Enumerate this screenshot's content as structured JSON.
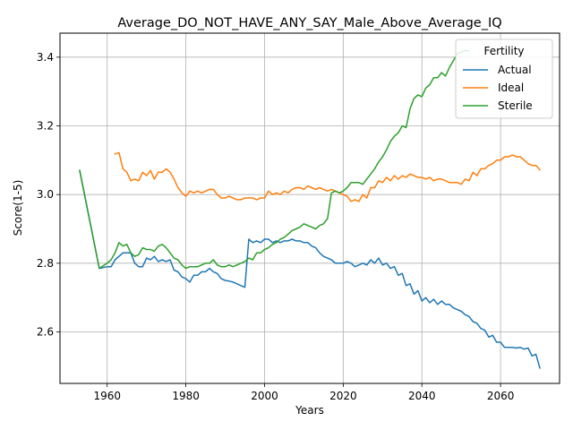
{
  "chart_data": {
    "type": "line",
    "title": "Average_DO_NOT_HAVE_ANY_SAY_Male_Above_Average_IQ",
    "xlabel": "Years",
    "ylabel": "Score(1-5)",
    "xlim": [
      1948,
      2075
    ],
    "ylim": [
      2.45,
      3.47
    ],
    "xticks": [
      1960,
      1980,
      2000,
      2020,
      2040,
      2060
    ],
    "yticks": [
      2.6,
      2.8,
      3.0,
      3.2,
      3.4
    ],
    "grid": true,
    "legend": {
      "title": "Fertility",
      "position": "top-right"
    },
    "series": [
      {
        "name": "Actual",
        "color": "#1f77b4",
        "points": [
          [
            1953,
            3.07
          ],
          [
            1958,
            2.785
          ],
          [
            1960,
            2.79
          ],
          [
            1961,
            2.79
          ],
          [
            1962,
            2.81
          ],
          [
            1964,
            2.83
          ],
          [
            1966,
            2.83
          ],
          [
            1967,
            2.8
          ],
          [
            1968,
            2.79
          ],
          [
            1969,
            2.79
          ],
          [
            1970,
            2.815
          ],
          [
            1971,
            2.81
          ],
          [
            1972,
            2.82
          ],
          [
            1973,
            2.805
          ],
          [
            1974,
            2.81
          ],
          [
            1975,
            2.805
          ],
          [
            1976,
            2.81
          ],
          [
            1977,
            2.78
          ],
          [
            1978,
            2.775
          ],
          [
            1979,
            2.76
          ],
          [
            1980,
            2.755
          ],
          [
            1981,
            2.745
          ],
          [
            1982,
            2.765
          ],
          [
            1983,
            2.765
          ],
          [
            1984,
            2.775
          ],
          [
            1985,
            2.775
          ],
          [
            1986,
            2.785
          ],
          [
            1987,
            2.775
          ],
          [
            1988,
            2.77
          ],
          [
            1989,
            2.755
          ],
          [
            1990,
            2.75
          ],
          [
            1991,
            2.748
          ],
          [
            1992,
            2.745
          ],
          [
            1993,
            2.74
          ],
          [
            1994,
            2.735
          ],
          [
            1995,
            2.73
          ],
          [
            1996,
            2.87
          ],
          [
            1997,
            2.86
          ],
          [
            1998,
            2.865
          ],
          [
            1999,
            2.86
          ],
          [
            2000,
            2.87
          ],
          [
            2001,
            2.87
          ],
          [
            2002,
            2.86
          ],
          [
            2003,
            2.865
          ],
          [
            2004,
            2.86
          ],
          [
            2005,
            2.865
          ],
          [
            2006,
            2.865
          ],
          [
            2007,
            2.87
          ],
          [
            2008,
            2.865
          ],
          [
            2009,
            2.865
          ],
          [
            2010,
            2.86
          ],
          [
            2011,
            2.86
          ],
          [
            2012,
            2.85
          ],
          [
            2013,
            2.845
          ],
          [
            2014,
            2.83
          ],
          [
            2015,
            2.82
          ],
          [
            2016,
            2.815
          ],
          [
            2017,
            2.81
          ],
          [
            2018,
            2.8
          ],
          [
            2019,
            2.8
          ],
          [
            2020,
            2.8
          ],
          [
            2021,
            2.805
          ],
          [
            2022,
            2.8
          ],
          [
            2023,
            2.79
          ],
          [
            2024,
            2.795
          ],
          [
            2025,
            2.8
          ],
          [
            2026,
            2.795
          ],
          [
            2027,
            2.81
          ],
          [
            2028,
            2.8
          ],
          [
            2029,
            2.815
          ],
          [
            2030,
            2.795
          ],
          [
            2031,
            2.8
          ],
          [
            2032,
            2.785
          ],
          [
            2033,
            2.79
          ],
          [
            2034,
            2.765
          ],
          [
            2035,
            2.77
          ],
          [
            2036,
            2.735
          ],
          [
            2037,
            2.74
          ],
          [
            2038,
            2.71
          ],
          [
            2039,
            2.72
          ],
          [
            2040,
            2.69
          ],
          [
            2041,
            2.7
          ],
          [
            2042,
            2.685
          ],
          [
            2043,
            2.695
          ],
          [
            2044,
            2.68
          ],
          [
            2045,
            2.69
          ],
          [
            2046,
            2.68
          ],
          [
            2047,
            2.68
          ],
          [
            2048,
            2.67
          ],
          [
            2049,
            2.665
          ],
          [
            2050,
            2.66
          ],
          [
            2051,
            2.65
          ],
          [
            2052,
            2.645
          ],
          [
            2053,
            2.63
          ],
          [
            2054,
            2.625
          ],
          [
            2055,
            2.61
          ],
          [
            2056,
            2.605
          ],
          [
            2057,
            2.585
          ],
          [
            2058,
            2.59
          ],
          [
            2059,
            2.57
          ],
          [
            2060,
            2.57
          ],
          [
            2061,
            2.555
          ],
          [
            2062,
            2.555
          ],
          [
            2063,
            2.555
          ],
          [
            2064,
            2.553
          ],
          [
            2065,
            2.555
          ],
          [
            2066,
            2.55
          ],
          [
            2067,
            2.553
          ],
          [
            2068,
            2.53
          ],
          [
            2069,
            2.535
          ],
          [
            2070,
            2.495
          ]
        ]
      },
      {
        "name": "Ideal",
        "color": "#ff7f0e",
        "points": [
          [
            1962,
            3.118
          ],
          [
            1963,
            3.122
          ],
          [
            1964,
            3.075
          ],
          [
            1965,
            3.065
          ],
          [
            1966,
            3.04
          ],
          [
            1967,
            3.045
          ],
          [
            1968,
            3.04
          ],
          [
            1969,
            3.065
          ],
          [
            1970,
            3.055
          ],
          [
            1971,
            3.07
          ],
          [
            1972,
            3.045
          ],
          [
            1973,
            3.065
          ],
          [
            1974,
            3.065
          ],
          [
            1975,
            3.075
          ],
          [
            1976,
            3.065
          ],
          [
            1977,
            3.045
          ],
          [
            1978,
            3.02
          ],
          [
            1979,
            3.005
          ],
          [
            1980,
            2.995
          ],
          [
            1981,
            3.01
          ],
          [
            1982,
            3.005
          ],
          [
            1983,
            3.01
          ],
          [
            1984,
            3.005
          ],
          [
            1985,
            3.01
          ],
          [
            1986,
            3.015
          ],
          [
            1987,
            3.015
          ],
          [
            1988,
            3.0
          ],
          [
            1989,
            2.99
          ],
          [
            1990,
            2.99
          ],
          [
            1991,
            2.995
          ],
          [
            1992,
            2.99
          ],
          [
            1993,
            2.985
          ],
          [
            1994,
            2.985
          ],
          [
            1995,
            2.99
          ],
          [
            1996,
            2.99
          ],
          [
            1997,
            2.99
          ],
          [
            1998,
            2.985
          ],
          [
            1999,
            2.99
          ],
          [
            2000,
            2.99
          ],
          [
            2001,
            3.01
          ],
          [
            2002,
            3.0
          ],
          [
            2003,
            3.005
          ],
          [
            2004,
            3.0
          ],
          [
            2005,
            3.01
          ],
          [
            2006,
            3.005
          ],
          [
            2007,
            3.015
          ],
          [
            2008,
            3.02
          ],
          [
            2009,
            3.02
          ],
          [
            2010,
            3.015
          ],
          [
            2011,
            3.025
          ],
          [
            2012,
            3.02
          ],
          [
            2013,
            3.015
          ],
          [
            2014,
            3.02
          ],
          [
            2015,
            3.015
          ],
          [
            2016,
            3.01
          ],
          [
            2017,
            3.015
          ],
          [
            2018,
            3.01
          ],
          [
            2019,
            3.005
          ],
          [
            2020,
            3.0
          ],
          [
            2021,
            2.995
          ],
          [
            2022,
            2.98
          ],
          [
            2023,
            2.985
          ],
          [
            2024,
            2.98
          ],
          [
            2025,
            3.0
          ],
          [
            2026,
            2.99
          ],
          [
            2027,
            3.02
          ],
          [
            2028,
            3.02
          ],
          [
            2029,
            3.04
          ],
          [
            2030,
            3.035
          ],
          [
            2031,
            3.05
          ],
          [
            2032,
            3.04
          ],
          [
            2033,
            3.055
          ],
          [
            2034,
            3.045
          ],
          [
            2035,
            3.055
          ],
          [
            2036,
            3.05
          ],
          [
            2037,
            3.06
          ],
          [
            2038,
            3.055
          ],
          [
            2039,
            3.05
          ],
          [
            2040,
            3.05
          ],
          [
            2041,
            3.045
          ],
          [
            2042,
            3.05
          ],
          [
            2043,
            3.04
          ],
          [
            2044,
            3.045
          ],
          [
            2045,
            3.045
          ],
          [
            2046,
            3.04
          ],
          [
            2047,
            3.035
          ],
          [
            2048,
            3.035
          ],
          [
            2049,
            3.035
          ],
          [
            2050,
            3.03
          ],
          [
            2051,
            3.045
          ],
          [
            2052,
            3.04
          ],
          [
            2053,
            3.065
          ],
          [
            2054,
            3.055
          ],
          [
            2055,
            3.075
          ],
          [
            2056,
            3.075
          ],
          [
            2057,
            3.085
          ],
          [
            2058,
            3.09
          ],
          [
            2059,
            3.1
          ],
          [
            2060,
            3.1
          ],
          [
            2061,
            3.11
          ],
          [
            2062,
            3.11
          ],
          [
            2063,
            3.115
          ],
          [
            2064,
            3.11
          ],
          [
            2065,
            3.11
          ],
          [
            2066,
            3.1
          ],
          [
            2067,
            3.09
          ],
          [
            2068,
            3.085
          ],
          [
            2069,
            3.085
          ],
          [
            2070,
            3.072
          ]
        ]
      },
      {
        "name": "Sterile",
        "color": "#2ca02c",
        "points": [
          [
            1953,
            3.07
          ],
          [
            1958,
            2.785
          ],
          [
            1960,
            2.8
          ],
          [
            1961,
            2.81
          ],
          [
            1962,
            2.83
          ],
          [
            1963,
            2.86
          ],
          [
            1964,
            2.85
          ],
          [
            1965,
            2.855
          ],
          [
            1966,
            2.83
          ],
          [
            1967,
            2.82
          ],
          [
            1968,
            2.825
          ],
          [
            1969,
            2.845
          ],
          [
            1970,
            2.84
          ],
          [
            1971,
            2.84
          ],
          [
            1972,
            2.835
          ],
          [
            1973,
            2.85
          ],
          [
            1974,
            2.855
          ],
          [
            1975,
            2.845
          ],
          [
            1976,
            2.83
          ],
          [
            1977,
            2.815
          ],
          [
            1978,
            2.81
          ],
          [
            1979,
            2.795
          ],
          [
            1980,
            2.785
          ],
          [
            1981,
            2.79
          ],
          [
            1982,
            2.79
          ],
          [
            1983,
            2.79
          ],
          [
            1984,
            2.795
          ],
          [
            1985,
            2.8
          ],
          [
            1986,
            2.8
          ],
          [
            1987,
            2.81
          ],
          [
            1988,
            2.795
          ],
          [
            1989,
            2.79
          ],
          [
            1990,
            2.79
          ],
          [
            1991,
            2.795
          ],
          [
            1992,
            2.79
          ],
          [
            1993,
            2.795
          ],
          [
            1994,
            2.8
          ],
          [
            1995,
            2.805
          ],
          [
            1996,
            2.815
          ],
          [
            1997,
            2.81
          ],
          [
            1998,
            2.83
          ],
          [
            1999,
            2.83
          ],
          [
            2000,
            2.84
          ],
          [
            2001,
            2.845
          ],
          [
            2002,
            2.855
          ],
          [
            2003,
            2.86
          ],
          [
            2004,
            2.87
          ],
          [
            2005,
            2.875
          ],
          [
            2006,
            2.885
          ],
          [
            2007,
            2.895
          ],
          [
            2008,
            2.9
          ],
          [
            2009,
            2.905
          ],
          [
            2010,
            2.915
          ],
          [
            2011,
            2.91
          ],
          [
            2012,
            2.905
          ],
          [
            2013,
            2.9
          ],
          [
            2014,
            2.91
          ],
          [
            2015,
            2.915
          ],
          [
            2016,
            2.93
          ],
          [
            2017,
            3.005
          ],
          [
            2018,
            3.01
          ],
          [
            2019,
            3.005
          ],
          [
            2020,
            3.01
          ],
          [
            2021,
            3.02
          ],
          [
            2022,
            3.035
          ],
          [
            2023,
            3.035
          ],
          [
            2024,
            3.035
          ],
          [
            2025,
            3.03
          ],
          [
            2026,
            3.045
          ],
          [
            2027,
            3.06
          ],
          [
            2028,
            3.075
          ],
          [
            2029,
            3.095
          ],
          [
            2030,
            3.11
          ],
          [
            2031,
            3.13
          ],
          [
            2032,
            3.155
          ],
          [
            2033,
            3.17
          ],
          [
            2034,
            3.18
          ],
          [
            2035,
            3.2
          ],
          [
            2036,
            3.195
          ],
          [
            2037,
            3.25
          ],
          [
            2038,
            3.28
          ],
          [
            2039,
            3.29
          ],
          [
            2040,
            3.285
          ],
          [
            2041,
            3.31
          ],
          [
            2042,
            3.32
          ],
          [
            2043,
            3.34
          ],
          [
            2044,
            3.34
          ],
          [
            2045,
            3.355
          ],
          [
            2046,
            3.345
          ],
          [
            2047,
            3.37
          ],
          [
            2048,
            3.39
          ],
          [
            2049,
            3.41
          ],
          [
            2050,
            3.415
          ],
          [
            2051,
            3.42
          ],
          [
            2052,
            3.418
          ]
        ]
      }
    ]
  }
}
